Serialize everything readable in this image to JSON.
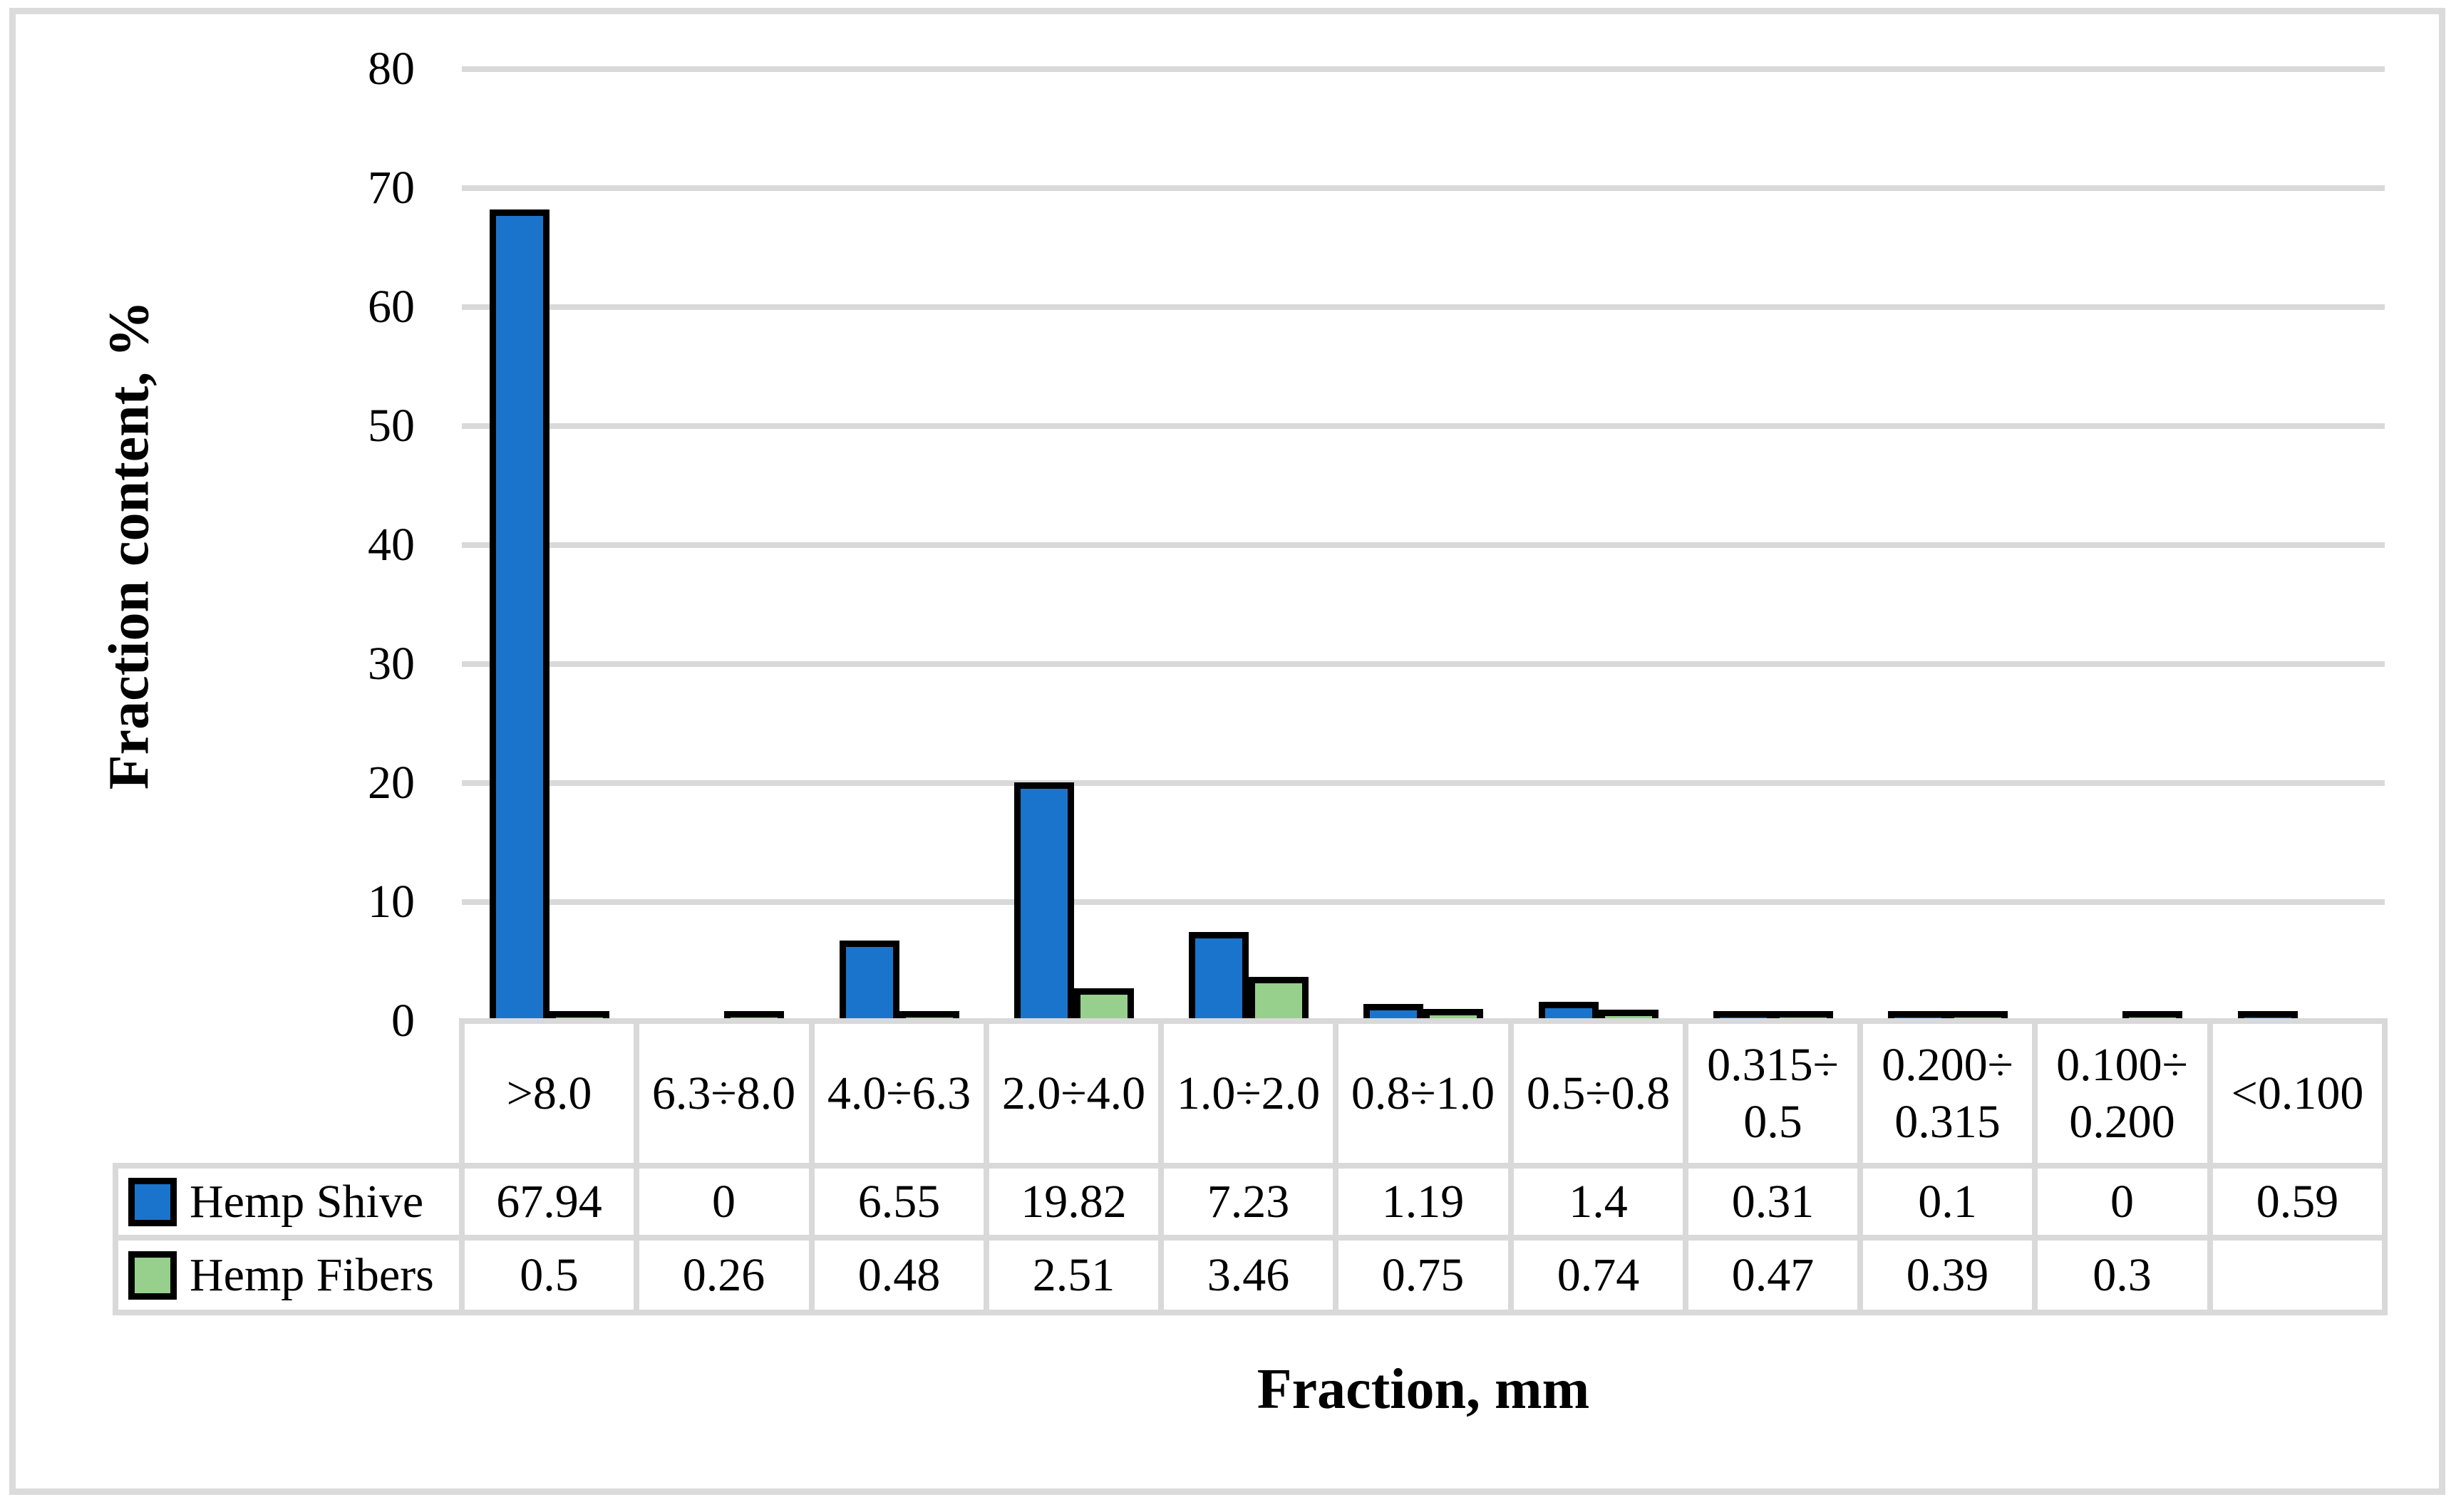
{
  "chart_data": {
    "type": "bar",
    "title": "",
    "ylabel": "Fraction content, %",
    "xlabel": "Fraction, mm",
    "ylim": [
      0,
      80
    ],
    "yticks": [
      0,
      10,
      20,
      30,
      40,
      50,
      60,
      70,
      80
    ],
    "grid": "horizontal",
    "legend_position": "table-left",
    "categories": [
      ">8.0",
      "6.3÷8.0",
      "4.0÷6.3",
      "2.0÷4.0",
      "1.0÷2.0",
      "0.8÷1.0",
      "0.5÷0.8",
      "0.315÷0.5",
      "0.200÷0.315",
      "0.100÷0.200",
      "<0.100"
    ],
    "categories_display": [
      [
        ">8.0"
      ],
      [
        "6.3÷8.0"
      ],
      [
        "4.0÷6.3"
      ],
      [
        "2.0÷4.0"
      ],
      [
        "1.0÷2.0"
      ],
      [
        "0.8÷1.0"
      ],
      [
        "0.5÷0.8"
      ],
      [
        "0.315÷",
        "0.5"
      ],
      [
        "0.200÷",
        "0.315"
      ],
      [
        "0.100÷",
        "0.200"
      ],
      [
        "<0.100"
      ]
    ],
    "series": [
      {
        "name": "Hemp Shive",
        "color": "#1b74cc",
        "outline": "#000000",
        "values": [
          67.94,
          0,
          6.55,
          19.82,
          7.23,
          1.19,
          1.4,
          0.31,
          0.1,
          0,
          0.59
        ],
        "display": [
          "67.94",
          "0",
          "6.55",
          "19.82",
          "7.23",
          "1.19",
          "1.4",
          "0.31",
          "0.1",
          "0",
          "0.59"
        ]
      },
      {
        "name": "Hemp Fibers",
        "color": "#97d08c",
        "outline": "#000000",
        "values": [
          0.5,
          0.26,
          0.48,
          2.51,
          3.46,
          0.75,
          0.74,
          0.47,
          0.39,
          0.3,
          null
        ],
        "display": [
          "0.5",
          "0.26",
          "0.48",
          "2.51",
          "3.46",
          "0.75",
          "0.74",
          "0.47",
          "0.39",
          "0.3",
          ""
        ]
      }
    ],
    "colors": {
      "gridline": "#d9d9d9",
      "table_border": "#d9d9d9",
      "frame_border": "#dbdbdb",
      "text": "#000000",
      "background": "#ffffff"
    }
  }
}
